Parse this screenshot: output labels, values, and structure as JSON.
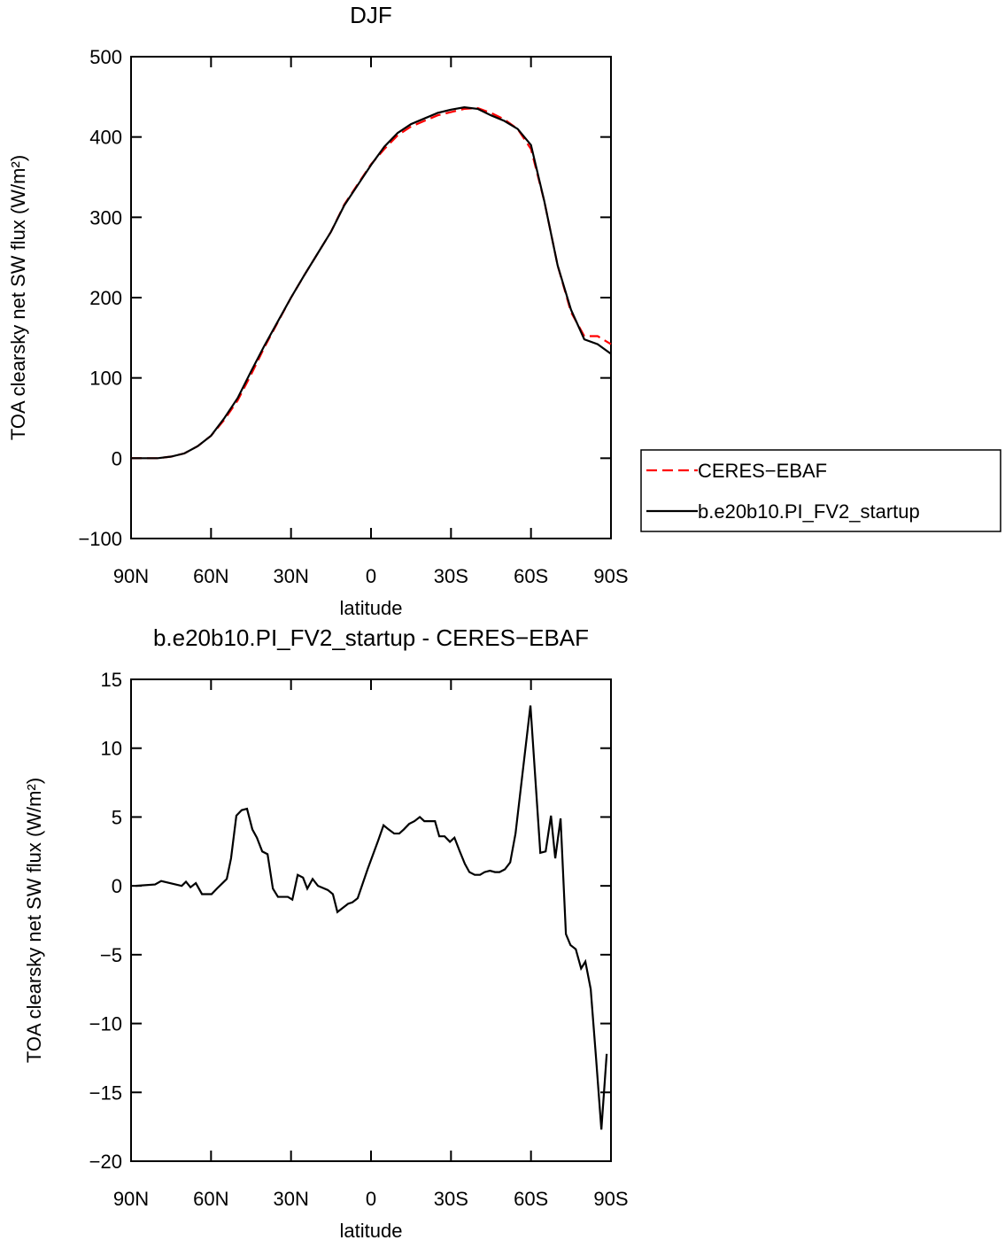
{
  "chart_data": [
    {
      "type": "line",
      "title": "DJF",
      "xlabel": "latitude",
      "ylabel": "TOA clearsky net SW flux (W/m²)",
      "x": [
        90,
        85,
        80,
        75,
        70,
        65,
        60,
        55,
        50,
        45,
        40,
        35,
        30,
        25,
        20,
        15,
        10,
        5,
        0,
        -5,
        -10,
        -15,
        -20,
        -25,
        -30,
        -35,
        -40,
        -45,
        -50,
        -55,
        -60,
        -65,
        -70,
        -75,
        -80,
        -85,
        -90
      ],
      "xlim": [
        90,
        -90
      ],
      "xticks": [
        {
          "value": 90,
          "label": "90N"
        },
        {
          "value": 60,
          "label": "60N"
        },
        {
          "value": 30,
          "label": "30N"
        },
        0,
        {
          "value": -30,
          "label": "30S"
        },
        {
          "value": -60,
          "label": "60S"
        },
        {
          "value": -90,
          "label": "90S"
        }
      ],
      "ylim": [
        -100,
        500
      ],
      "yticks": [
        {
          "value": -100,
          "label": "−100"
        },
        0,
        100,
        200,
        300,
        400,
        500
      ],
      "legend": "right",
      "series": [
        {
          "name": "CERES−EBAF",
          "color": "#ff0000",
          "dash": "dashed",
          "values": [
            0,
            0,
            0,
            2,
            6,
            15,
            28,
            48,
            72,
            104,
            138,
            169,
            200,
            228,
            255,
            282,
            316,
            341,
            366,
            385,
            402,
            413,
            420,
            427,
            431,
            435,
            436,
            430,
            422,
            410,
            385,
            320,
            240,
            182,
            152,
            152,
            142
          ]
        },
        {
          "name": "b.e20b10.PI_FV2_startup",
          "color": "#000000",
          "dash": "solid",
          "values": [
            0,
            0,
            0,
            2,
            6,
            15,
            28,
            50,
            75,
            108,
            140,
            170,
            200,
            228,
            255,
            282,
            315,
            340,
            365,
            388,
            405,
            416,
            423,
            430,
            434,
            437,
            435,
            427,
            420,
            410,
            390,
            320,
            240,
            185,
            148,
            142,
            130
          ]
        }
      ]
    },
    {
      "type": "line",
      "title": "b.e20b10.PI_FV2_startup - CERES−EBAF",
      "xlabel": "latitude",
      "ylabel": "TOA clearsky net SW flux (W/m²)",
      "x": [
        88.3,
        81,
        78.7,
        71,
        69.4,
        67.7,
        65.7,
        63.4,
        59.8,
        57.8,
        54.1,
        52.5,
        50.5,
        48.5,
        46.5,
        44.5,
        42.8,
        40.8,
        38.8,
        36.8,
        34.9,
        31.2,
        29.5,
        27.5,
        25.5,
        23.9,
        21.9,
        19.9,
        16.2,
        14.3,
        12.6,
        8.6,
        7,
        5,
        1.3,
        -2.7,
        -4.7,
        -6.6,
        -8.7,
        -10.6,
        -12.3,
        -14.3,
        -16.3,
        -18.3,
        -20,
        -24,
        -25.6,
        -27.6,
        -29.6,
        -31.3,
        -33.3,
        -35.2,
        -36.9,
        -38.9,
        -40.9,
        -42.6,
        -44.6,
        -46.5,
        -48.2,
        -50.2,
        -52.2,
        -54.2,
        -59.8,
        -63.5,
        -65.5,
        -67.5,
        -69.1,
        -71.1,
        -73.1,
        -74.8,
        -76.8,
        -78.8,
        -80.4,
        -82.4,
        -84.4,
        -86.4,
        -88.4
      ],
      "xlim": [
        90,
        -90
      ],
      "xticks": [
        {
          "value": 90,
          "label": "90N"
        },
        {
          "value": 60,
          "label": "60N"
        },
        {
          "value": 30,
          "label": "30N"
        },
        0,
        {
          "value": -30,
          "label": "30S"
        },
        {
          "value": -60,
          "label": "60S"
        },
        {
          "value": -90,
          "label": "90S"
        }
      ],
      "ylim": [
        -20,
        15
      ],
      "yticks": [
        {
          "value": -20,
          "label": "−20"
        },
        {
          "value": -15,
          "label": "−15"
        },
        {
          "value": -10,
          "label": "−10"
        },
        {
          "value": -5,
          "label": "−5"
        },
        0,
        5,
        10,
        15
      ],
      "series": [
        {
          "color": "#000000",
          "dash": "solid",
          "values": [
            0,
            0.1,
            0.35,
            0,
            0.3,
            -0.1,
            0.2,
            -0.6,
            -0.6,
            -0.2,
            0.5,
            2,
            5.1,
            5.5,
            5.6,
            4.1,
            3.5,
            2.5,
            2.3,
            -0.2,
            -0.8,
            -0.8,
            -1,
            0.8,
            0.6,
            -0.2,
            0.5,
            0,
            -0.3,
            -0.6,
            -1.9,
            -1.3,
            -1.2,
            -0.9,
            1.2,
            3.3,
            4.4,
            4.1,
            3.8,
            3.8,
            4.1,
            4.5,
            4.7,
            5,
            4.7,
            4.7,
            3.6,
            3.6,
            3.2,
            3.5,
            2.5,
            1.6,
            1,
            0.8,
            0.8,
            1,
            1.1,
            1,
            1,
            1.2,
            1.7,
            3.8,
            13.1,
            2.4,
            2.5,
            5.1,
            2,
            4.9,
            -3.5,
            -4.3,
            -4.6,
            -6,
            -5.5,
            -7.5,
            -12.5,
            -17.7,
            -12.2
          ]
        }
      ]
    }
  ]
}
